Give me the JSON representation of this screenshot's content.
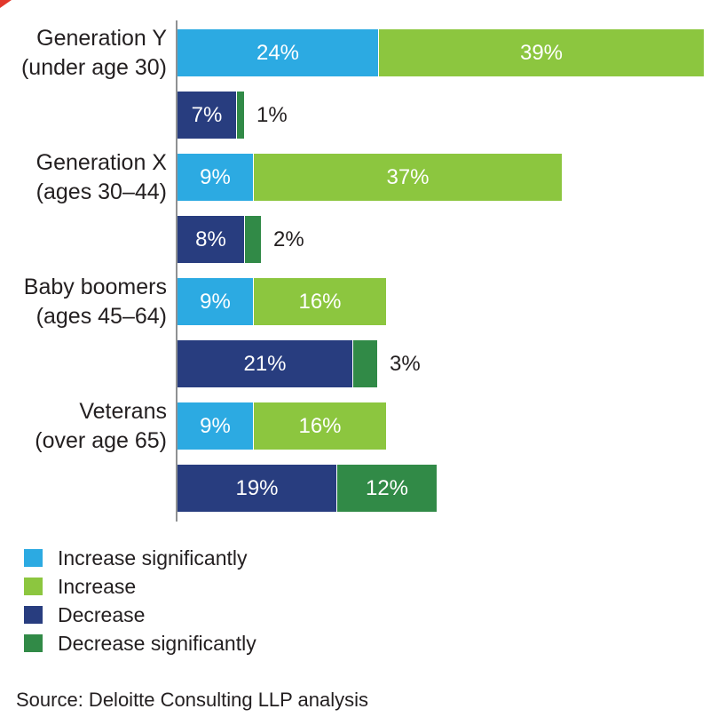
{
  "page": {
    "corner_marker_color": "#e2382c"
  },
  "chart_data": {
    "type": "bar",
    "orientation": "horizontal",
    "stacked": true,
    "title": "",
    "value_suffix": "%",
    "axis": {
      "x_min": 0,
      "x_max_visible": 63,
      "gridlines": false,
      "baseline": "vertical gray axis line at left of bars"
    },
    "legend_position": "bottom-left",
    "series_colors": {
      "Increase significantly": "#2caae2",
      "Increase": "#8cc63f",
      "Decrease": "#283d7f",
      "Decrease significantly": "#318a47"
    },
    "legend": [
      {
        "label": "Increase significantly",
        "color": "#2caae2"
      },
      {
        "label": "Increase",
        "color": "#8cc63f"
      },
      {
        "label": "Decrease",
        "color": "#283d7f"
      },
      {
        "label": "Decrease significantly",
        "color": "#318a47"
      }
    ],
    "groups": [
      {
        "category_lines": [
          "Generation Y",
          "(under age 30)"
        ],
        "bars": [
          {
            "name": "increase-bar",
            "segments": [
              {
                "series": "Increase significantly",
                "value": 24
              },
              {
                "series": "Increase",
                "value": 39
              }
            ]
          },
          {
            "name": "decrease-bar",
            "segments": [
              {
                "series": "Decrease",
                "value": 7
              },
              {
                "series": "Decrease significantly",
                "value": 1
              }
            ]
          }
        ]
      },
      {
        "category_lines": [
          "Generation X",
          "(ages 30–44)"
        ],
        "bars": [
          {
            "name": "increase-bar",
            "segments": [
              {
                "series": "Increase significantly",
                "value": 9
              },
              {
                "series": "Increase",
                "value": 37
              }
            ]
          },
          {
            "name": "decrease-bar",
            "segments": [
              {
                "series": "Decrease",
                "value": 8
              },
              {
                "series": "Decrease significantly",
                "value": 2
              }
            ]
          }
        ]
      },
      {
        "category_lines": [
          "Baby boomers",
          "(ages 45–64)"
        ],
        "bars": [
          {
            "name": "increase-bar",
            "segments": [
              {
                "series": "Increase significantly",
                "value": 9
              },
              {
                "series": "Increase",
                "value": 16
              }
            ]
          },
          {
            "name": "decrease-bar",
            "segments": [
              {
                "series": "Decrease",
                "value": 21
              },
              {
                "series": "Decrease significantly",
                "value": 3
              }
            ]
          }
        ]
      },
      {
        "category_lines": [
          "Veterans",
          "(over age 65)"
        ],
        "bars": [
          {
            "name": "increase-bar",
            "segments": [
              {
                "series": "Increase significantly",
                "value": 9
              },
              {
                "series": "Increase",
                "value": 16
              }
            ]
          },
          {
            "name": "decrease-bar",
            "segments": [
              {
                "series": "Decrease",
                "value": 19
              },
              {
                "series": "Decrease significantly",
                "value": 12
              }
            ]
          }
        ]
      }
    ],
    "source": "Source: Deloitte Consulting LLP analysis"
  }
}
